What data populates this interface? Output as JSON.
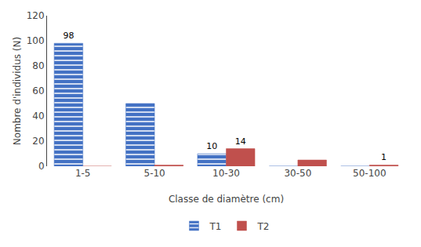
{
  "chart_data": {
    "type": "bar",
    "categories": [
      "1-5",
      "5-10",
      "10-30",
      "30-50",
      "50-100"
    ],
    "series": [
      {
        "name": "T1",
        "color": "#4472C4",
        "values": [
          98,
          50,
          10,
          0,
          0
        ],
        "value_labels": [
          "98",
          null,
          "10",
          null,
          null
        ]
      },
      {
        "name": "T2",
        "color": "#C0504D",
        "values": [
          0,
          1,
          14,
          5,
          1
        ],
        "value_labels": [
          null,
          null,
          "14",
          null,
          "1"
        ]
      }
    ],
    "xlabel": "Classe de diamètre (cm)",
    "ylabel": "Nombre d'individus (N)",
    "ylim": [
      0,
      120
    ],
    "yticks": [
      0,
      20,
      40,
      60,
      80,
      100,
      120
    ],
    "grid": false,
    "legend": "bottom"
  }
}
